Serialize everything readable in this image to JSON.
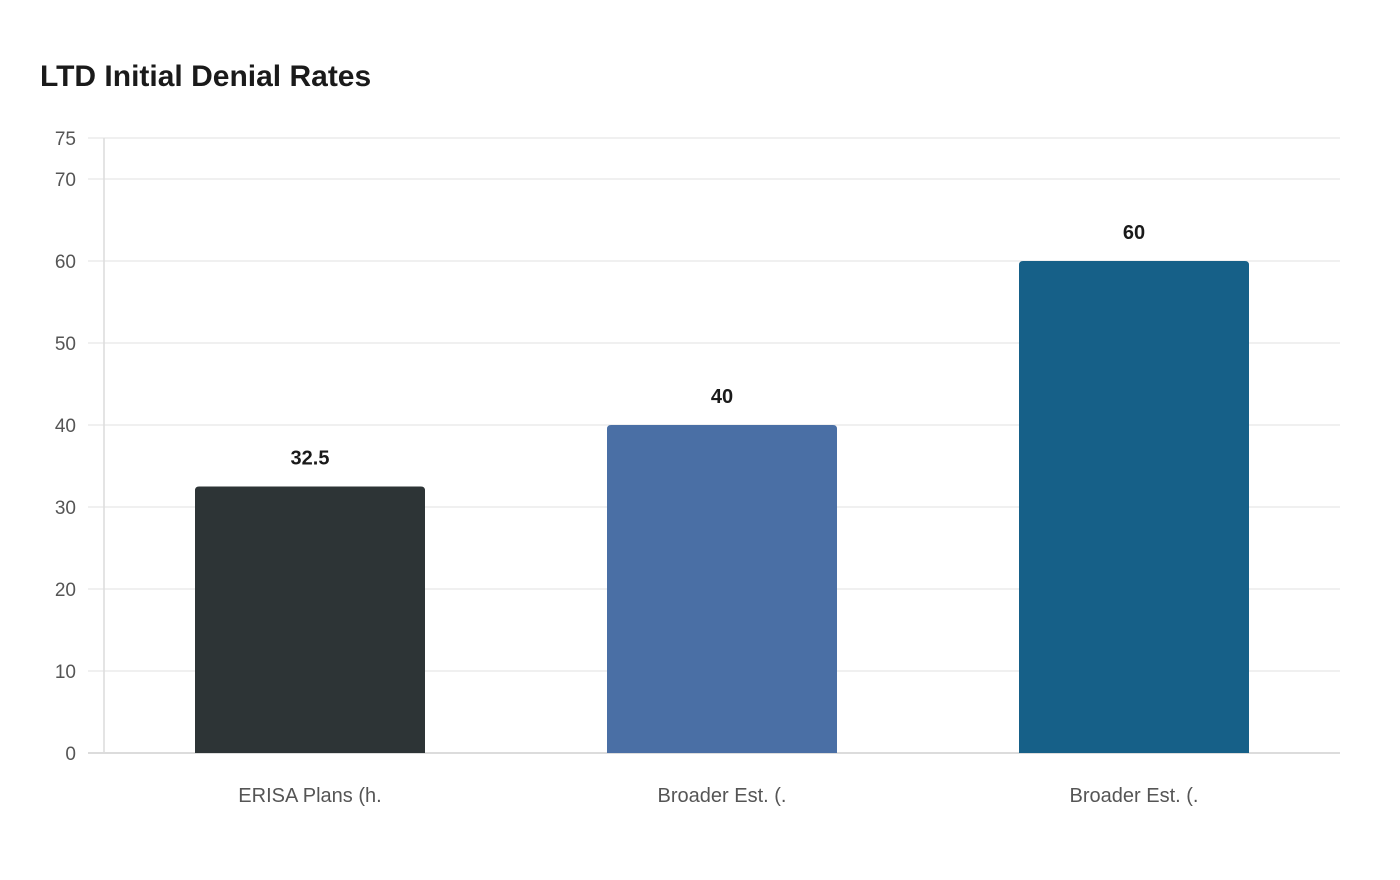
{
  "chart_data": {
    "type": "bar",
    "title": "LTD Initial Denial Rates",
    "categories": [
      "ERISA Plans (h.",
      "Broader Est. (.",
      "Broader Est. (."
    ],
    "values": [
      32.5,
      40,
      60
    ],
    "data_labels": [
      "32.5",
      "40",
      "60"
    ],
    "colors": [
      "#2d3436",
      "#4a6fa5",
      "#166088"
    ],
    "ylim": [
      0,
      75
    ],
    "yticks": [
      0,
      10,
      20,
      30,
      40,
      50,
      60,
      70,
      75
    ],
    "grid": true,
    "xlabel": "",
    "ylabel": ""
  }
}
